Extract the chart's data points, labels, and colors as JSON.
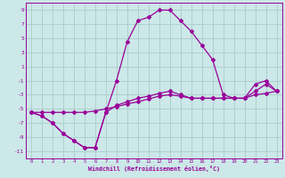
{
  "xlabel": "Windchill (Refroidissement éolien,°C)",
  "background_color": "#cce8e8",
  "grid_color": "#aacccc",
  "line_color": "#990099",
  "x_ticks": [
    0,
    1,
    2,
    3,
    4,
    5,
    6,
    7,
    8,
    9,
    10,
    11,
    12,
    13,
    14,
    15,
    16,
    17,
    18,
    19,
    20,
    21,
    22,
    23
  ],
  "y_ticks": [
    -11,
    -9,
    -7,
    -5,
    -3,
    -1,
    1,
    3,
    5,
    7,
    9
  ],
  "xlim": [
    -0.5,
    23.5
  ],
  "ylim": [
    -12,
    10
  ],
  "curve1_x": [
    0,
    1,
    2,
    3,
    4,
    5,
    6,
    7,
    8,
    9,
    10,
    11,
    12,
    13,
    14,
    15,
    16,
    17,
    18,
    19,
    20,
    21,
    22,
    23
  ],
  "curve1_y": [
    -5.5,
    -6.0,
    -7.0,
    -8.5,
    -9.5,
    -10.5,
    -10.5,
    -5.5,
    -1.0,
    4.5,
    7.5,
    8.0,
    9.0,
    9.0,
    7.5,
    6.0,
    4.0,
    2.0,
    -3.0,
    -3.5,
    -3.5,
    -1.5,
    -1.0,
    -2.5
  ],
  "curve2_x": [
    0,
    1,
    2,
    3,
    4,
    5,
    6,
    7,
    8,
    9,
    10,
    11,
    12,
    13,
    14,
    15,
    16,
    17,
    18,
    19,
    20,
    21,
    22,
    23
  ],
  "curve2_y": [
    -5.5,
    -6.0,
    -7.0,
    -8.5,
    -9.5,
    -10.5,
    -10.5,
    -5.5,
    -4.5,
    -4.0,
    -3.5,
    -3.2,
    -2.8,
    -2.5,
    -3.0,
    -3.5,
    -3.5,
    -3.5,
    -3.5,
    -3.5,
    -3.5,
    -3.0,
    -2.8,
    -2.5
  ],
  "curve3_x": [
    0,
    1,
    2,
    3,
    4,
    5,
    6,
    7,
    8,
    9,
    10,
    11,
    12,
    13,
    14,
    15,
    16,
    17,
    18,
    19,
    20,
    21,
    22,
    23
  ],
  "curve3_y": [
    -5.5,
    -5.5,
    -5.5,
    -5.5,
    -5.5,
    -5.5,
    -5.3,
    -5.0,
    -4.7,
    -4.3,
    -4.0,
    -3.6,
    -3.2,
    -3.0,
    -3.2,
    -3.5,
    -3.5,
    -3.5,
    -3.5,
    -3.5,
    -3.5,
    -2.5,
    -1.5,
    -2.5
  ]
}
